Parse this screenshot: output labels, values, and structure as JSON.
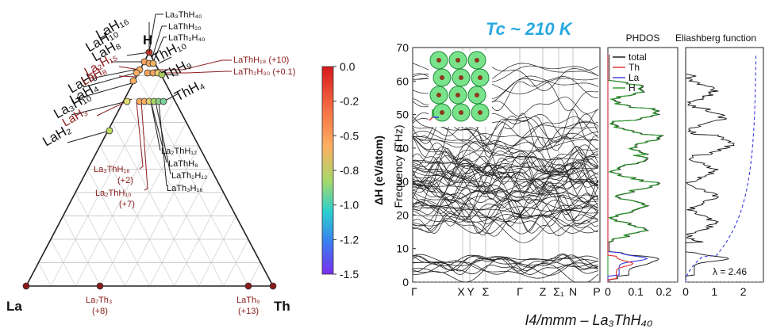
{
  "ternary": {
    "corners": {
      "left": "La",
      "right": "Th",
      "top": "H"
    },
    "bottom_phases": [
      {
        "name": "La₇Th₃",
        "delta": "(+8)"
      },
      {
        "name": "LaTh₉",
        "delta": "(+13)"
      }
    ],
    "labels_black_top": [
      "La₃ThH₄₀",
      "LaThH₂₀",
      "LaTh₃H₄₀"
    ],
    "labels_black_left": [
      "LaH₁₆",
      "LaH₁₀",
      "LaH₈",
      "LaH₆",
      "LaH₄",
      "La₃H₁₀",
      "LaH₂"
    ],
    "labels_red_left": [
      "La₂H₁₅",
      "LaH₈",
      "LaH₃"
    ],
    "labels_black_right": [
      "ThH₁₀",
      "ThH₉",
      "ThH₄"
    ],
    "labels_red_right": [
      "LaThH₁₈ (+10)",
      "LaTh₂H₃₀ (+0.1)"
    ],
    "labels_black_middle": [
      "La₂ThH₁₂",
      "LaThH₈",
      "LaTh₂H₁₂",
      "LaTh₃H₁₆"
    ],
    "labels_red_middle": [
      {
        "name": "La₃ThH₁₆",
        "delta": "(+2)"
      },
      {
        "name": "La₂ThH₁₀",
        "delta": "(+7)"
      }
    ]
  },
  "colorbar": {
    "label": "ΔH (eV/atom)",
    "ticks": [
      "0.0",
      "-0.2",
      "-0.5",
      "-0.8",
      "-1.0",
      "-1.2",
      "-1.5"
    ],
    "colors": [
      "#d7191c",
      "#f46d43",
      "#fdae61",
      "#a6d96a",
      "#2bcfcf",
      "#3a7cf0",
      "#7a2ff0"
    ]
  },
  "phonon": {
    "tc_label": "Tc ~ 210 K",
    "ylabel": "Frequency (THz)",
    "yticks": [
      "0",
      "10",
      "20",
      "30",
      "40",
      "50",
      "60",
      "70"
    ],
    "kpoints": [
      "Γ",
      "X",
      "Y",
      "Σ",
      "Γ",
      "Z",
      "Σ₁",
      "N",
      "P"
    ],
    "phdos_title": "PHDOS",
    "phdos_xticks": [
      "0",
      "0.1",
      "0.2"
    ],
    "legend": [
      {
        "name": "total",
        "color": "#111111"
      },
      {
        "name": "Th",
        "color": "#e03030"
      },
      {
        "name": "La",
        "color": "#3a3ae0"
      },
      {
        "name": "H",
        "color": "#2a9a2a"
      }
    ],
    "eliash_title": "Eliashberg function",
    "eliash_xticks": [
      "0",
      "1",
      "2"
    ],
    "lambda_label": "λ = 2.46",
    "structure_caption": "I4/mmm – La₃ThH₄₀"
  }
}
